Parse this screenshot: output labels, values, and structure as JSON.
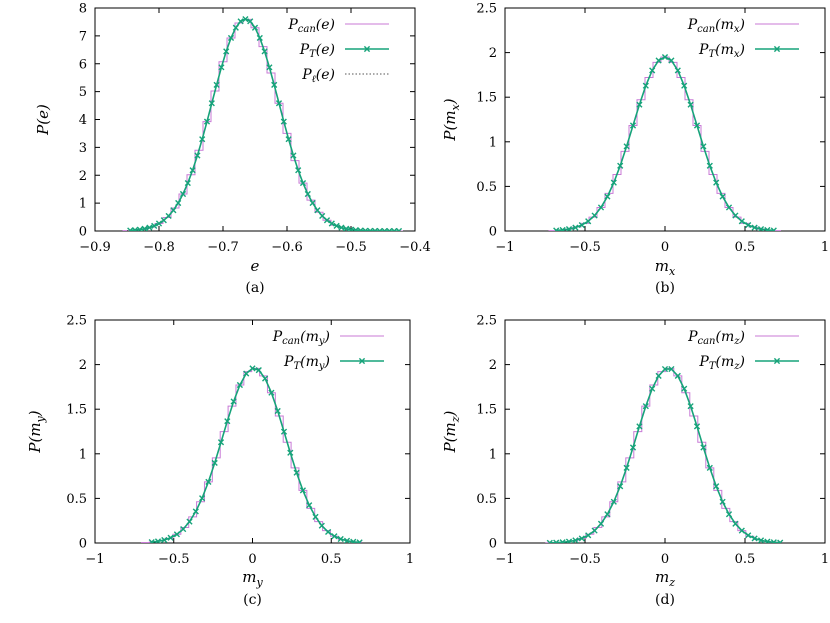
{
  "figure": {
    "panel_captions": [
      "(a)",
      "(b)",
      "(c)",
      "(d)"
    ]
  },
  "colors": {
    "can": "#c87ad6",
    "T": "#17a37a",
    "ell": "#555555"
  },
  "chart_data": [
    {
      "type": "line",
      "caption": "(a)",
      "xlabel": "e",
      "ylabel": "P(e)",
      "xlim": [
        -0.9,
        -0.4
      ],
      "ylim": [
        0,
        8
      ],
      "xticks": [
        -0.9,
        -0.8,
        -0.7,
        -0.6,
        -0.5,
        -0.4
      ],
      "xtick_labels": [
        "−0.9",
        "−0.8",
        "−0.7",
        "−0.6",
        "−0.5",
        "−0.4"
      ],
      "yticks": [
        0,
        1,
        2,
        3,
        4,
        5,
        6,
        7,
        8
      ],
      "ytick_labels": [
        "0",
        "1",
        "2",
        "3",
        "4",
        "5",
        "6",
        "7",
        "8"
      ],
      "legend_position": "top-right",
      "series": [
        {
          "key": "can",
          "name": "P_can(e)",
          "label_main": "P",
          "label_sub": "can",
          "label_arg": "(e)",
          "style": "step",
          "mean": -0.665,
          "sigma": 0.0522,
          "amp": 7.6,
          "xmin": -0.85,
          "xmax": -0.42,
          "step": 0.0125
        },
        {
          "key": "T",
          "name": "P_T(e)",
          "label_main": "P",
          "label_sub": "T",
          "label_arg": "(e)",
          "style": "line-markers",
          "mean": -0.665,
          "sigma": 0.0522,
          "amp": 7.6,
          "xmin": -0.845,
          "xmax": -0.42,
          "step": 0.0075
        },
        {
          "key": "ell",
          "name": "P_ℓ(e)",
          "label_main": "P",
          "label_sub": "ℓ",
          "label_arg": "(e)",
          "style": "dotted",
          "mean": -0.665,
          "sigma": 0.0522,
          "amp": 7.6,
          "xmin": -0.85,
          "xmax": -0.42,
          "step": 0.004
        }
      ]
    },
    {
      "type": "line",
      "caption": "(b)",
      "xlabel": "m_x",
      "xlabel_main": "m",
      "xlabel_sub": "x",
      "ylabel": "P(m_x)",
      "ylabel_pre": "P(m",
      "ylabel_sub": "x",
      "ylabel_post": ")",
      "xlim": [
        -1,
        1
      ],
      "ylim": [
        0,
        2.5
      ],
      "xticks": [
        -1,
        -0.5,
        0,
        0.5,
        1
      ],
      "xtick_labels": [
        "−1",
        "−0.5",
        "0",
        "0.5",
        "1"
      ],
      "yticks": [
        0,
        0.5,
        1,
        1.5,
        2,
        2.5
      ],
      "ytick_labels": [
        "0",
        "0.5",
        "1",
        "1.5",
        "2",
        "2.5"
      ],
      "legend_position": "top-right",
      "series": [
        {
          "key": "can",
          "name": "P_can(m_x)",
          "label_main": "P",
          "label_sub": "can",
          "label_arg_pre": "(m",
          "label_arg_sub": "x",
          "label_arg_post": ")",
          "style": "step",
          "mean": 0,
          "sigma": 0.2,
          "amp": 1.95,
          "xmin": -0.7,
          "xmax": 0.7,
          "step": 0.05
        },
        {
          "key": "T",
          "name": "P_T(m_x)",
          "label_main": "P",
          "label_sub": "T",
          "label_arg_pre": "(m",
          "label_arg_sub": "x",
          "label_arg_post": ")",
          "style": "line-markers",
          "mean": 0,
          "sigma": 0.2,
          "amp": 1.95,
          "xmin": -0.68,
          "xmax": 0.68,
          "step": 0.04
        }
      ]
    },
    {
      "type": "line",
      "caption": "(c)",
      "xlabel": "m_y",
      "xlabel_main": "m",
      "xlabel_sub": "y",
      "ylabel": "P(m_y)",
      "ylabel_pre": "P(m",
      "ylabel_sub": "y",
      "ylabel_post": ")",
      "xlim": [
        -1,
        1
      ],
      "ylim": [
        0,
        2.5
      ],
      "xticks": [
        -1,
        -0.5,
        0,
        0.5,
        1
      ],
      "xtick_labels": [
        "−1",
        "−0.5",
        "0",
        "0.5",
        "1"
      ],
      "yticks": [
        0,
        0.5,
        1,
        1.5,
        2,
        2.5
      ],
      "ytick_labels": [
        "0",
        "0.5",
        "1",
        "1.5",
        "2",
        "2.5"
      ],
      "legend_position": "top-right",
      "series": [
        {
          "key": "can",
          "name": "P_can(m_y)",
          "label_main": "P",
          "label_sub": "can",
          "label_arg_pre": "(m",
          "label_arg_sub": "y",
          "label_arg_post": ")",
          "style": "step",
          "mean": 0.01,
          "sigma": 0.2,
          "amp": 1.96,
          "xmin": -0.68,
          "xmax": 0.68,
          "step": 0.05
        },
        {
          "key": "T",
          "name": "P_T(m_y)",
          "label_main": "P",
          "label_sub": "T",
          "label_arg_pre": "(m",
          "label_arg_sub": "y",
          "label_arg_post": ")",
          "style": "line-markers",
          "mean": 0.01,
          "sigma": 0.2,
          "amp": 1.96,
          "xmin": -0.64,
          "xmax": 0.68,
          "step": 0.04
        }
      ]
    },
    {
      "type": "line",
      "caption": "(d)",
      "xlabel": "m_z",
      "xlabel_main": "m",
      "xlabel_sub": "z",
      "ylabel": "P(m_z)",
      "ylabel_pre": "P(m",
      "ylabel_sub": "z",
      "ylabel_post": ")",
      "xlim": [
        -1,
        1
      ],
      "ylim": [
        0,
        2.5
      ],
      "xticks": [
        -1,
        -0.5,
        0,
        0.5,
        1
      ],
      "xtick_labels": [
        "−1",
        "−0.5",
        "0",
        "0.5",
        "1"
      ],
      "yticks": [
        0,
        0.5,
        1,
        1.5,
        2,
        2.5
      ],
      "ytick_labels": [
        "0",
        "0.5",
        "1",
        "1.5",
        "2",
        "2.5"
      ],
      "legend_position": "top-right",
      "series": [
        {
          "key": "can",
          "name": "P_can(m_z)",
          "label_main": "P",
          "label_sub": "can",
          "label_arg_pre": "(m",
          "label_arg_sub": "z",
          "label_arg_post": ")",
          "style": "step",
          "mean": 0.02,
          "sigma": 0.2,
          "amp": 1.96,
          "xmin": -0.72,
          "xmax": 0.72,
          "step": 0.05
        },
        {
          "key": "T",
          "name": "P_T(m_z)",
          "label_main": "P",
          "label_sub": "T",
          "label_arg_pre": "(m",
          "label_arg_sub": "z",
          "label_arg_post": ")",
          "style": "line-markers",
          "mean": 0.02,
          "sigma": 0.2,
          "amp": 1.96,
          "xmin": -0.72,
          "xmax": 0.72,
          "step": 0.04
        }
      ]
    }
  ]
}
